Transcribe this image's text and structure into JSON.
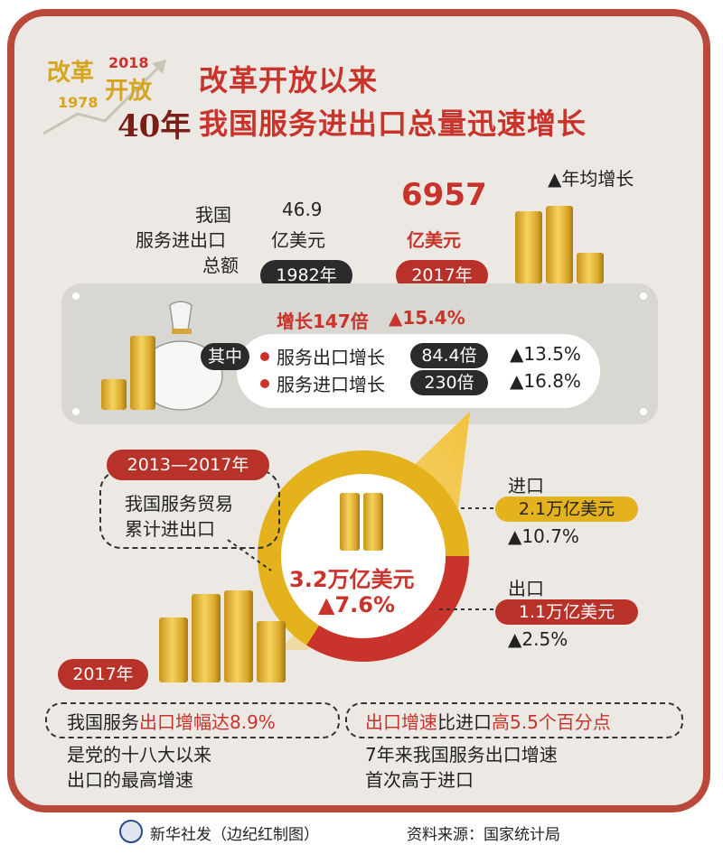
{
  "logo": {
    "line1": "改革",
    "line1b": "开放",
    "year_end": "2018",
    "year_start": "1978",
    "anniversary": "40年"
  },
  "title": {
    "line1": "改革开放以来",
    "line2": "我国服务进出口总量迅速增长"
  },
  "legend": {
    "annual_growth": "▲年均增长"
  },
  "totals": {
    "label_line1": "我国",
    "label_line2": "服务进出口",
    "label_line3": "总额",
    "value_1982": "46.9",
    "unit_1982": "亿美元",
    "year_1982": "1982年",
    "value_2017": "6957",
    "unit_2017": "亿美元",
    "year_2017": "2017年",
    "growth_times": "增长147倍",
    "growth_rate": "▲15.4%"
  },
  "breakdown": {
    "of_which": "其中",
    "export_label": "服务出口增长",
    "export_times": "84.4倍",
    "export_rate": "▲13.5%",
    "import_label": "服务进口增长",
    "import_times": "230倍",
    "import_rate": "▲16.8%"
  },
  "period": {
    "range": "2013—2017年",
    "desc_line1": "我国服务贸易",
    "desc_line2": "累计进出口",
    "total": "3.2万亿美元",
    "total_rate": "▲7.6%",
    "import_label": "进口",
    "import_value": "2.1万亿美元",
    "import_rate": "▲10.7%",
    "export_label": "出口",
    "export_value": "1.1万亿美元",
    "export_rate": "▲2.5%",
    "ring_shares": {
      "import": 0.66,
      "export": 0.34
    }
  },
  "year2017": {
    "label": "2017年",
    "note1_prefix": "我国服务",
    "note1_highlight": "出口增幅达",
    "note1_value": "8.9%",
    "note1_line2": "是党的十八大以来",
    "note1_line3": "出口的最高增速",
    "note2_h1": "出口增速",
    "note2_mid": "比进口",
    "note2_h2": "高5.5个百分点",
    "note2_line2": "7年来我国服务出口增速",
    "note2_line3": "首次高于进口"
  },
  "footer": {
    "agency": "新华社发（边纪红制图）",
    "source": "资料来源：国家统计局"
  },
  "colors": {
    "accent_red": "#c8332b",
    "gold": "#e2b120",
    "frame": "#b8493b"
  }
}
